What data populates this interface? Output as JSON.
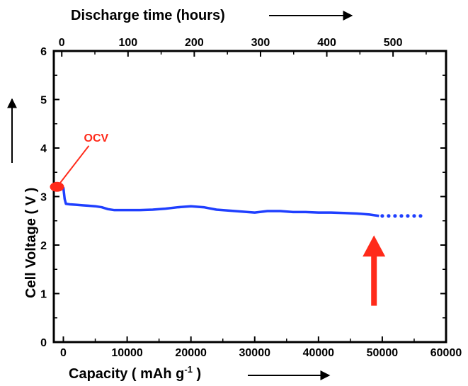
{
  "chart_data": {
    "type": "line",
    "title": "",
    "xlabel": "Capacity ( mAh g",
    "xlabel_sup": "-1",
    "xlabel_tail": " )",
    "ylabel": "Cell Voltage ( V )",
    "x2label": "Discharge time (hours)",
    "xlim": [
      -1500,
      60000
    ],
    "ylim": [
      0,
      6
    ],
    "x2lim": [
      -12,
      580
    ],
    "xticks": [
      0,
      10000,
      20000,
      30000,
      40000,
      50000,
      60000
    ],
    "xtick_labels": [
      "0",
      "10000",
      "20000",
      "30000",
      "40000",
      "50000",
      "60000"
    ],
    "yticks": [
      0,
      1,
      2,
      3,
      4,
      5,
      6
    ],
    "ytick_labels": [
      "0",
      "1",
      "2",
      "3",
      "4",
      "5",
      "6"
    ],
    "x2ticks": [
      0,
      100,
      200,
      300,
      400,
      500
    ],
    "x2tick_labels": [
      "0",
      "100",
      "200",
      "300",
      "400",
      "500"
    ],
    "grid": false,
    "colors": {
      "series": "#1f3fff",
      "annotation": "#ff2a1a",
      "axis": "#000000"
    },
    "series": [
      {
        "x": [
          -1200,
          -600,
          0,
          200,
          400,
          1000,
          2000,
          3000,
          4000,
          5000,
          6000,
          7000,
          8000,
          10000,
          12000,
          14000,
          16000,
          18000,
          20000,
          22000,
          24000,
          26000,
          28000,
          30000,
          32000,
          34000,
          36000,
          38000,
          40000,
          42000,
          44000,
          46000,
          48000,
          49500
        ],
        "y": [
          3.2,
          3.2,
          3.18,
          2.95,
          2.85,
          2.84,
          2.83,
          2.82,
          2.81,
          2.8,
          2.78,
          2.74,
          2.72,
          2.72,
          2.72,
          2.73,
          2.75,
          2.78,
          2.8,
          2.78,
          2.73,
          2.71,
          2.69,
          2.67,
          2.7,
          2.7,
          2.68,
          2.68,
          2.67,
          2.67,
          2.66,
          2.65,
          2.63,
          2.6
        ]
      }
    ],
    "extrapolation": {
      "x": [
        50000,
        51000,
        52000,
        53000,
        54000,
        55000,
        56000
      ],
      "y": [
        2.6,
        2.6,
        2.6,
        2.6,
        2.6,
        2.6,
        2.6
      ]
    },
    "annotations": {
      "ocv": {
        "label": "OCV",
        "x": -1000,
        "y": 3.2
      },
      "end_arrow": {
        "x": 48700,
        "y_tip": 2.2,
        "y_tail": 0.75
      }
    }
  }
}
